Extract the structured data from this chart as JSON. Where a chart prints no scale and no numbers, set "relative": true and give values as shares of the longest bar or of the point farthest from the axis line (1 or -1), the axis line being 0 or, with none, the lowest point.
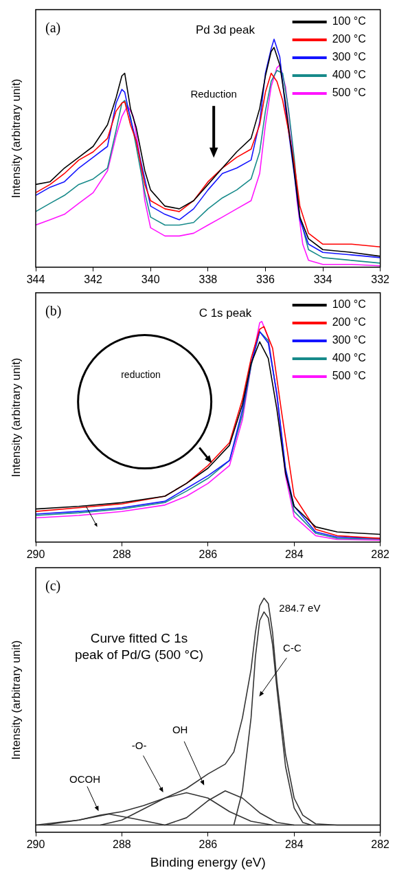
{
  "chart_data": [
    {
      "type": "line",
      "title": "Pd 3d peak",
      "ylabel": "Intensity (arbitrary unit)",
      "relative": true,
      "xlim": [
        344,
        332
      ],
      "xticks": [
        344,
        342,
        340,
        338,
        336,
        334,
        332
      ],
      "legend": "top right",
      "marker": "none",
      "annotations": [
        "(a)",
        "Reduction"
      ],
      "series": [
        {
          "name": "100 °C",
          "color": "#000000",
          "x": [
            344,
            343.5,
            343,
            342.5,
            342,
            341.5,
            341.2,
            341,
            340.9,
            340.7,
            340.5,
            340.2,
            340,
            339.5,
            339,
            338.5,
            338,
            337.5,
            337,
            336.5,
            336.2,
            336,
            335.8,
            335.7,
            335.5,
            335.3,
            335,
            334.8,
            334.5,
            334,
            333,
            332
          ],
          "values": [
            0.363,
            0.375,
            0.435,
            0.482,
            0.53,
            0.625,
            0.744,
            0.839,
            0.851,
            0.696,
            0.613,
            0.423,
            0.339,
            0.268,
            0.256,
            0.292,
            0.363,
            0.435,
            0.506,
            0.565,
            0.696,
            0.839,
            0.946,
            0.964,
            0.887,
            0.72,
            0.423,
            0.22,
            0.125,
            0.077,
            0.065,
            0.048
          ]
        },
        {
          "name": "200 °C",
          "color": "#ff0000",
          "x": [
            344,
            343.5,
            343,
            342.5,
            342,
            341.5,
            341.2,
            341,
            340.9,
            340.7,
            340.5,
            340.2,
            340,
            339.5,
            339,
            338.5,
            338,
            337.5,
            337,
            336.5,
            336.2,
            336,
            335.8,
            335.6,
            335.4,
            335.2,
            335,
            334.8,
            334.5,
            334,
            333,
            332
          ],
          "values": [
            0.327,
            0.363,
            0.411,
            0.47,
            0.506,
            0.565,
            0.685,
            0.72,
            0.726,
            0.625,
            0.554,
            0.363,
            0.292,
            0.256,
            0.244,
            0.292,
            0.375,
            0.435,
            0.482,
            0.518,
            0.625,
            0.768,
            0.851,
            0.815,
            0.732,
            0.601,
            0.458,
            0.268,
            0.149,
            0.101,
            0.101,
            0.089
          ]
        },
        {
          "name": "300 °C",
          "color": "#1414ff",
          "x": [
            344,
            343.5,
            343,
            342.5,
            342,
            341.5,
            341.2,
            341,
            340.9,
            340.7,
            340.5,
            340.2,
            340,
            339.5,
            339,
            338.5,
            338,
            337.5,
            337,
            336.5,
            336.2,
            336,
            335.8,
            335.7,
            335.5,
            335.3,
            335,
            334.8,
            334.5,
            334,
            333,
            332
          ],
          "values": [
            0.315,
            0.351,
            0.375,
            0.435,
            0.482,
            0.53,
            0.72,
            0.78,
            0.768,
            0.649,
            0.554,
            0.387,
            0.268,
            0.232,
            0.208,
            0.256,
            0.339,
            0.411,
            0.435,
            0.47,
            0.637,
            0.851,
            0.958,
            1.0,
            0.923,
            0.696,
            0.411,
            0.208,
            0.101,
            0.065,
            0.054,
            0.042
          ]
        },
        {
          "name": "400 °C",
          "color": "#178a8a",
          "x": [
            344,
            343.5,
            343,
            342.5,
            342,
            341.5,
            341.2,
            341,
            340.9,
            340.7,
            340.5,
            340.2,
            340,
            339.5,
            339,
            338.5,
            338,
            337.5,
            337,
            336.5,
            336.2,
            336,
            335.8,
            335.6,
            335.4,
            335.2,
            335,
            334.8,
            334.5,
            334,
            333,
            332
          ],
          "values": [
            0.244,
            0.28,
            0.315,
            0.363,
            0.387,
            0.435,
            0.601,
            0.72,
            0.732,
            0.661,
            0.53,
            0.327,
            0.22,
            0.185,
            0.185,
            0.196,
            0.256,
            0.304,
            0.339,
            0.387,
            0.506,
            0.685,
            0.815,
            0.863,
            0.851,
            0.696,
            0.482,
            0.22,
            0.077,
            0.042,
            0.03,
            0.018
          ]
        },
        {
          "name": "500 °C",
          "color": "#ff14ff",
          "x": [
            344,
            343.5,
            343,
            342.5,
            342,
            341.5,
            341.2,
            341,
            340.8,
            340.6,
            340.4,
            340.2,
            340,
            339.5,
            339,
            338.5,
            338,
            337.5,
            337,
            336.5,
            336.2,
            336,
            335.8,
            335.6,
            335.5,
            335.3,
            335.1,
            334.9,
            334.7,
            334.5,
            334,
            333,
            332
          ],
          "values": [
            0.185,
            0.208,
            0.232,
            0.28,
            0.327,
            0.423,
            0.577,
            0.661,
            0.708,
            0.661,
            0.506,
            0.292,
            0.173,
            0.137,
            0.137,
            0.149,
            0.185,
            0.22,
            0.256,
            0.292,
            0.411,
            0.625,
            0.792,
            0.875,
            0.887,
            0.792,
            0.577,
            0.292,
            0.101,
            0.03,
            0.012,
            0.012,
            0.006
          ]
        }
      ]
    },
    {
      "type": "line",
      "title": "C 1s peak",
      "ylabel": "Intensity (arbitrary unit)",
      "relative": true,
      "xlim": [
        290,
        282
      ],
      "xticks": [
        290,
        288,
        286,
        284,
        282
      ],
      "legend": "top right",
      "marker": "none",
      "annotations": [
        "(b)",
        "reduction"
      ],
      "series": [
        {
          "name": "100 °C",
          "color": "#000000",
          "x": [
            290,
            289,
            288,
            287,
            286.5,
            286,
            285.5,
            285.2,
            285,
            284.8,
            284.6,
            284.4,
            284.2,
            284,
            283.5,
            283,
            282
          ],
          "values": [
            0.15,
            0.162,
            0.179,
            0.208,
            0.266,
            0.335,
            0.439,
            0.624,
            0.809,
            0.908,
            0.832,
            0.601,
            0.312,
            0.162,
            0.069,
            0.046,
            0.035
          ]
        },
        {
          "name": "200 °C",
          "color": "#ff0000",
          "x": [
            290,
            289,
            288,
            287,
            286.5,
            286,
            285.5,
            285.2,
            285,
            284.8,
            284.7,
            284.5,
            284.3,
            284,
            283.5,
            283,
            282
          ],
          "values": [
            0.139,
            0.156,
            0.173,
            0.208,
            0.266,
            0.347,
            0.451,
            0.647,
            0.832,
            0.965,
            0.977,
            0.879,
            0.601,
            0.208,
            0.058,
            0.029,
            0.017
          ]
        },
        {
          "name": "300 °C",
          "color": "#1414ff",
          "x": [
            290,
            289,
            288,
            287,
            286.5,
            286,
            285.5,
            285.2,
            285,
            284.8,
            284.6,
            284.4,
            284.2,
            284,
            283.5,
            283,
            282
          ],
          "values": [
            0.127,
            0.139,
            0.156,
            0.185,
            0.243,
            0.301,
            0.37,
            0.601,
            0.809,
            0.954,
            0.902,
            0.671,
            0.335,
            0.162,
            0.046,
            0.023,
            0.017
          ]
        },
        {
          "name": "400 °C",
          "color": "#178a8a",
          "x": [
            290,
            289,
            288,
            287,
            286.5,
            286,
            285.5,
            285.2,
            285,
            284.8,
            284.6,
            284.4,
            284.2,
            284,
            283.5,
            283,
            282
          ],
          "values": [
            0.121,
            0.133,
            0.15,
            0.179,
            0.231,
            0.289,
            0.37,
            0.578,
            0.798,
            0.954,
            0.913,
            0.671,
            0.324,
            0.139,
            0.04,
            0.017,
            0.014
          ]
        },
        {
          "name": "500 °C",
          "color": "#ff14ff",
          "x": [
            290,
            289,
            288,
            287,
            286.5,
            286,
            285.5,
            285.2,
            285,
            284.8,
            284.75,
            284.6,
            284.4,
            284.2,
            284,
            283.5,
            283,
            282
          ],
          "values": [
            0.11,
            0.121,
            0.139,
            0.168,
            0.208,
            0.266,
            0.347,
            0.555,
            0.798,
            0.994,
            1.0,
            0.925,
            0.659,
            0.301,
            0.116,
            0.029,
            0.012,
            0.009
          ]
        }
      ]
    },
    {
      "type": "line",
      "title": "Curve fitted C 1s\npeak of Pd/G (500 °C)",
      "xlabel": "Binding energy (eV)",
      "ylabel": "Intensity (arbitrary unit)",
      "relative": true,
      "xlim": [
        290,
        282
      ],
      "xticks": [
        290,
        288,
        286,
        284,
        282
      ],
      "marker": "none",
      "annotations": [
        "(c)",
        {
          "text": "284.7 eV",
          "x": 284.7,
          "y": 1.0
        },
        "C-C",
        "OH",
        "-O-",
        "OCOH"
      ],
      "series": [
        {
          "color": "#333333",
          "x": [
            290,
            289.5,
            289,
            288.5,
            288,
            287.5,
            287,
            286.5,
            286,
            285.6,
            285.4,
            285.2,
            285,
            284.9,
            284.8,
            284.7,
            284.6,
            284.5,
            284.4,
            284.2,
            284,
            283.8,
            283.5,
            283,
            282
          ],
          "values": [
            0.031,
            0.042,
            0.052,
            0.073,
            0.088,
            0.114,
            0.146,
            0.187,
            0.249,
            0.291,
            0.343,
            0.489,
            0.696,
            0.852,
            0.967,
            1.0,
            0.977,
            0.852,
            0.644,
            0.333,
            0.146,
            0.073,
            0.036,
            0.031,
            0.031
          ]
        },
        {
          "color": "#333333",
          "x": [
            285.4,
            285.2,
            285,
            284.9,
            284.8,
            284.7,
            284.6,
            284.5,
            284.4,
            284.2,
            284,
            283.8,
            283.6
          ],
          "values": [
            0.031,
            0.177,
            0.489,
            0.748,
            0.904,
            0.941,
            0.915,
            0.8,
            0.613,
            0.281,
            0.104,
            0.042,
            0.031
          ]
        },
        {
          "color": "#333333",
          "x": [
            287,
            286.5,
            286,
            285.6,
            285.2,
            284.8,
            284.4,
            284
          ],
          "values": [
            0.031,
            0.062,
            0.135,
            0.177,
            0.146,
            0.083,
            0.042,
            0.031
          ]
        },
        {
          "color": "#333333",
          "x": [
            288.5,
            288,
            287.5,
            287,
            286.5,
            286,
            285.5,
            285,
            284.5
          ],
          "values": [
            0.031,
            0.052,
            0.099,
            0.146,
            0.169,
            0.146,
            0.088,
            0.047,
            0.031
          ]
        },
        {
          "color": "#333333",
          "x": [
            289.8,
            289,
            288.3,
            287.7,
            287
          ],
          "values": [
            0.031,
            0.052,
            0.078,
            0.057,
            0.031
          ]
        },
        {
          "color": "#333333",
          "x": [
            290,
            282
          ],
          "values": [
            0.031,
            0.031
          ]
        }
      ]
    }
  ]
}
